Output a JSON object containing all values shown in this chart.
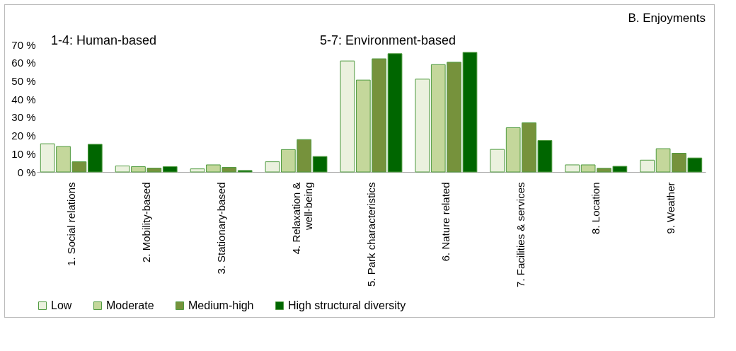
{
  "chart_data": {
    "type": "bar",
    "title": "B. Enjoyments",
    "annotations": [
      "1-4: Human-based",
      "5-7: Environment-based"
    ],
    "categories": [
      "1. Social relations",
      "2. Mobility-based",
      "3. Stationary-based",
      "4. Relaxation & well-being",
      "5. Park characteristics",
      "6. Nature related",
      "7. Facilities & services",
      "8. Location",
      "9. Weather"
    ],
    "series": [
      {
        "name": "Low",
        "color": "#ebf1de",
        "values": [
          15.5,
          3.3,
          1.7,
          5.6,
          61,
          51,
          12.4,
          3.9,
          6.5
        ]
      },
      {
        "name": "Moderate",
        "color": "#c4d79b",
        "values": [
          14,
          2.9,
          3.9,
          12.3,
          50.5,
          59,
          24.3,
          3.9,
          12.8
        ]
      },
      {
        "name": "Medium-high",
        "color": "#76923c",
        "values": [
          5.6,
          2.1,
          2.5,
          17.8,
          62.2,
          60.3,
          27,
          2,
          10.3
        ]
      },
      {
        "name": "High structural diversity",
        "color": "#006600",
        "values": [
          15.2,
          2.9,
          0.8,
          8.5,
          65,
          65.7,
          17.3,
          3.1,
          7.7
        ]
      }
    ],
    "ylim": [
      0,
      70
    ],
    "yticks": [
      {
        "value": 0,
        "label": "0 %"
      },
      {
        "value": 10,
        "label": "10 %"
      },
      {
        "value": 20,
        "label": "20 %"
      },
      {
        "value": 30,
        "label": "30 %"
      },
      {
        "value": 40,
        "label": "40 %"
      },
      {
        "value": 50,
        "label": "50 %"
      },
      {
        "value": 60,
        "label": "60 %"
      },
      {
        "value": 70,
        "label": "70 %"
      }
    ],
    "grid": false,
    "legend": "bottom"
  }
}
